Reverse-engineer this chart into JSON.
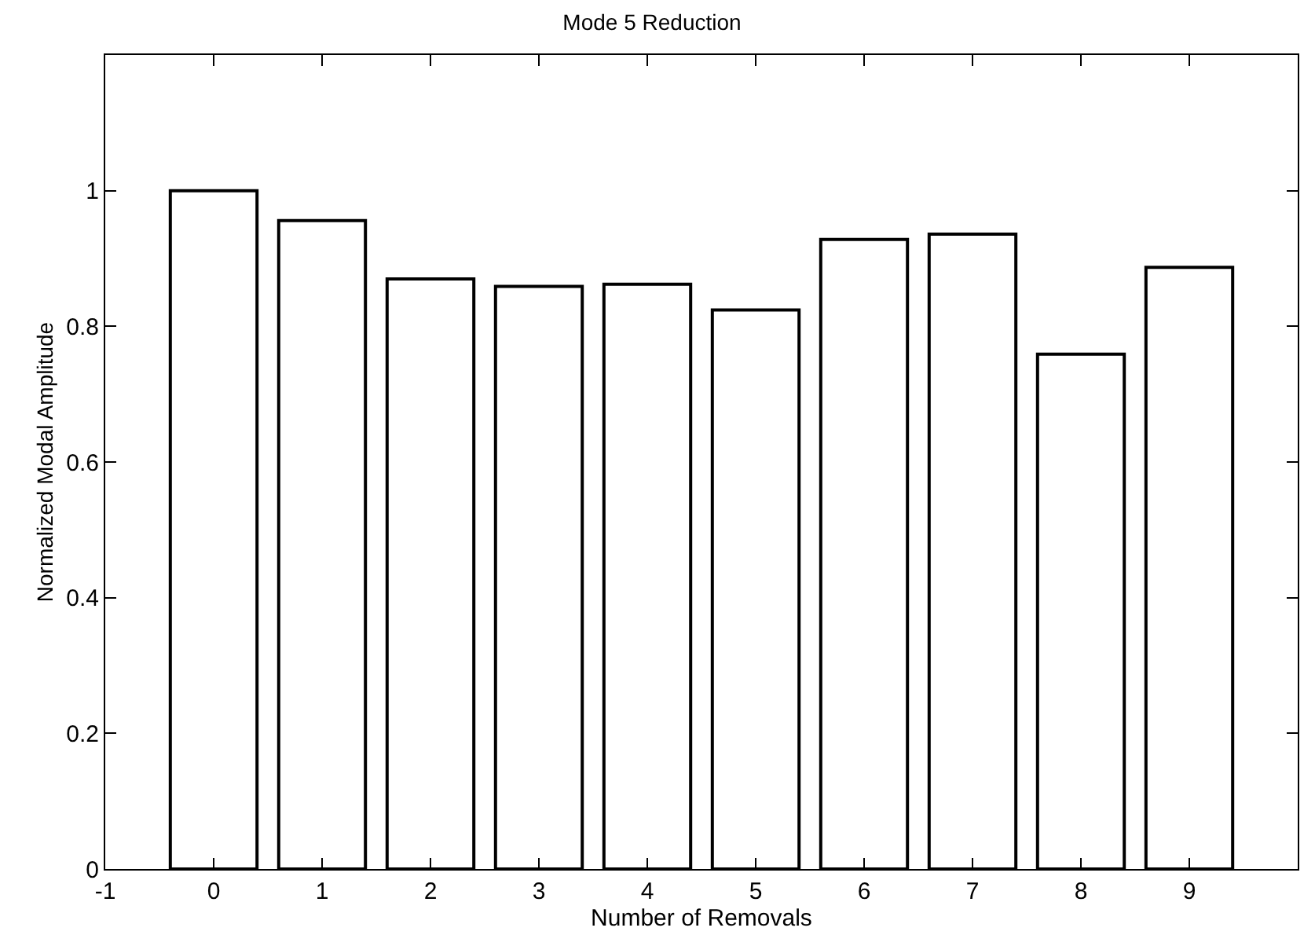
{
  "chart_data": {
    "type": "bar",
    "title": "Mode 5 Reduction",
    "xlabel": "Number of Removals",
    "ylabel": "Normalized Modal Amplitude",
    "x": [
      0,
      1,
      2,
      3,
      4,
      5,
      6,
      7,
      8,
      9
    ],
    "values": [
      1.0,
      0.956,
      0.87,
      0.859,
      0.862,
      0.824,
      0.928,
      0.936,
      0.759,
      0.887
    ],
    "color": "#ffffff",
    "xlim": [
      -1,
      10
    ],
    "xticks": [
      -1,
      0,
      1,
      2,
      3,
      4,
      5,
      6,
      7,
      8,
      9
    ],
    "ylim": [
      0,
      1.2
    ],
    "yticks": [
      0,
      0.2,
      0.4,
      0.6,
      0.8,
      1
    ]
  }
}
